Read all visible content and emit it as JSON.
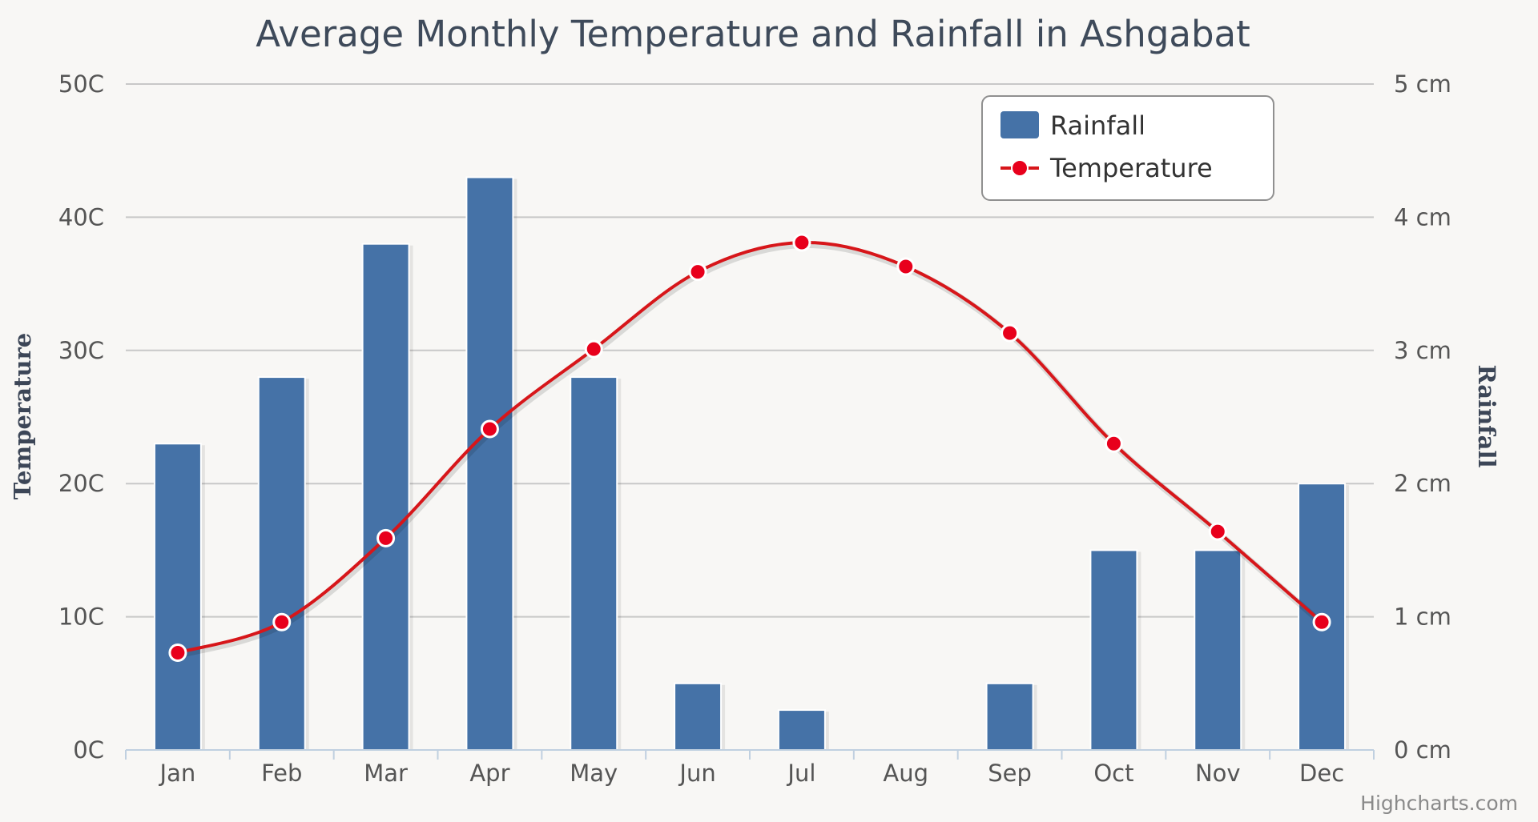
{
  "chart_data": {
    "type": "bar",
    "title": "Average Monthly Temperature and Rainfall in Ashgabat",
    "categories": [
      "Jan",
      "Feb",
      "Mar",
      "Apr",
      "May",
      "Jun",
      "Jul",
      "Aug",
      "Sep",
      "Oct",
      "Nov",
      "Dec"
    ],
    "series": [
      {
        "name": "Rainfall",
        "type": "bar",
        "axis": "right",
        "unit": "cm",
        "color": "#4572a7",
        "values": [
          2.3,
          2.8,
          3.8,
          4.3,
          2.8,
          0.5,
          0.3,
          0,
          0.5,
          1.5,
          1.5,
          2.0
        ]
      },
      {
        "name": "Temperature",
        "type": "line",
        "axis": "left",
        "unit": "C",
        "color": "#d7161a",
        "values": [
          7.3,
          9.6,
          15.9,
          24.1,
          30.1,
          35.9,
          38.1,
          36.3,
          31.3,
          23.0,
          16.4,
          9.6
        ]
      }
    ],
    "y_axis_left": {
      "title": "Temperature",
      "range": [
        0,
        50
      ],
      "ticks": [
        "0C",
        "10C",
        "20C",
        "30C",
        "40C",
        "50C"
      ]
    },
    "y_axis_right": {
      "title": "Rainfall",
      "range": [
        0,
        5
      ],
      "ticks": [
        "0 cm",
        "1 cm",
        "2 cm",
        "3 cm",
        "4 cm",
        "5 cm"
      ]
    },
    "grid": true,
    "legend_position": "top-right",
    "credits": "Highcharts.com"
  }
}
